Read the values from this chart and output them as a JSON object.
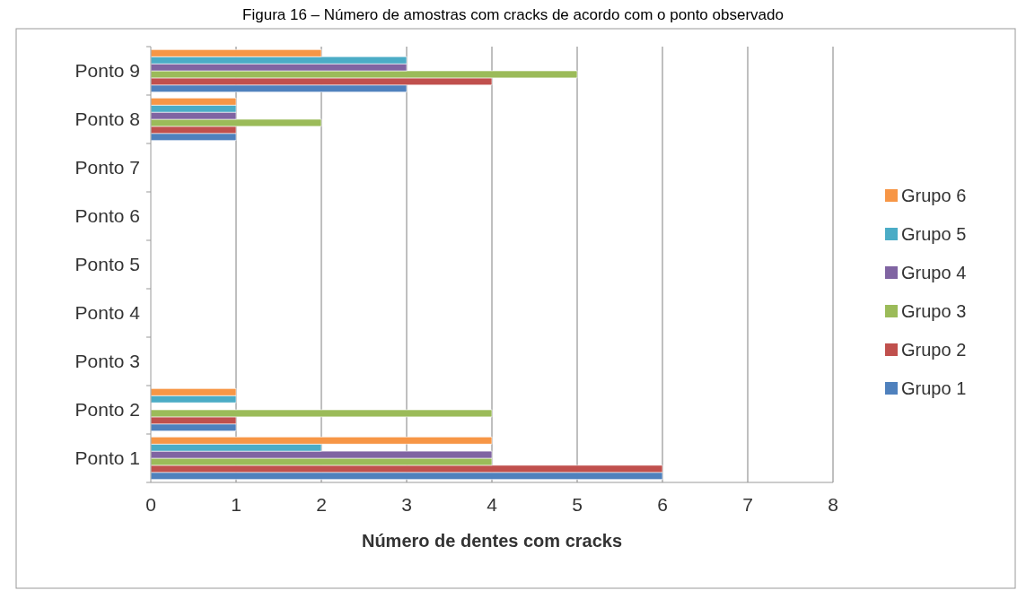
{
  "chart_data": {
    "type": "bar",
    "orientation": "horizontal",
    "title": "Figura 16 – Número de amostras com cracks de acordo com o ponto observado",
    "xlabel": "Número de dentes com cracks",
    "categories": [
      "Ponto 9",
      "Ponto 8",
      "Ponto 7",
      "Ponto 6",
      "Ponto 5",
      "Ponto 4",
      "Ponto 3",
      "Ponto 2",
      "Ponto 1"
    ],
    "series": [
      {
        "name": "Grupo 1",
        "color": "#4f81bd",
        "values": [
          3,
          1,
          0,
          0,
          0,
          0,
          0,
          1,
          6
        ]
      },
      {
        "name": "Grupo 2",
        "color": "#c0504d",
        "values": [
          4,
          1,
          0,
          0,
          0,
          0,
          0,
          1,
          6
        ]
      },
      {
        "name": "Grupo 3",
        "color": "#9bbb59",
        "values": [
          5,
          2,
          0,
          0,
          0,
          0,
          0,
          4,
          4
        ]
      },
      {
        "name": "Grupo 4",
        "color": "#8064a2",
        "values": [
          3,
          1,
          0,
          0,
          0,
          0,
          0,
          0,
          4
        ]
      },
      {
        "name": "Grupo 5",
        "color": "#4bacc6",
        "values": [
          3,
          1,
          0,
          0,
          0,
          0,
          0,
          1,
          2
        ]
      },
      {
        "name": "Grupo 6",
        "color": "#f79646",
        "values": [
          2,
          1,
          0,
          0,
          0,
          0,
          0,
          1,
          4
        ]
      }
    ],
    "xlim": [
      0,
      8
    ],
    "xticks": [
      0,
      1,
      2,
      3,
      4,
      5,
      6,
      7,
      8
    ],
    "grid": "x",
    "legend": "right"
  }
}
